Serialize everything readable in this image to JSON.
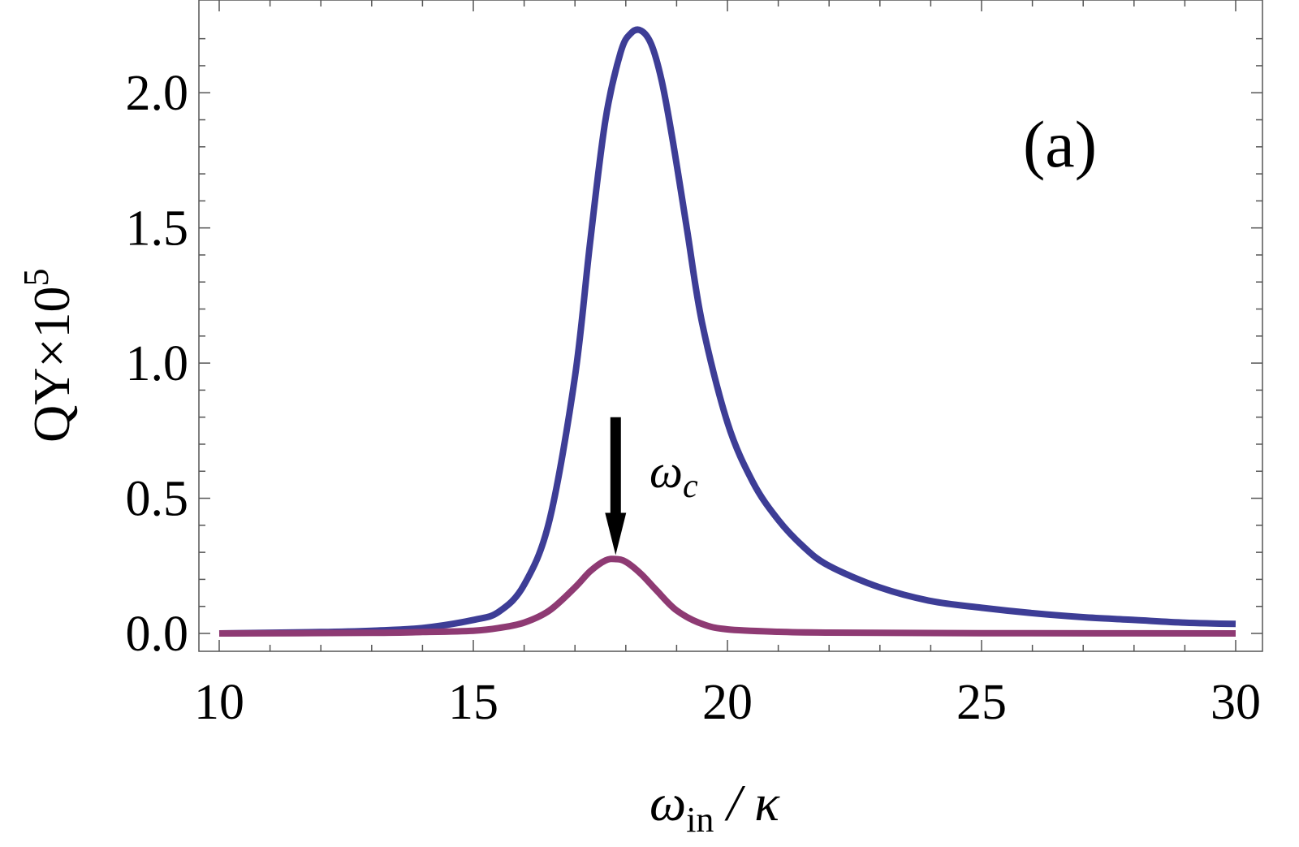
{
  "chart_data": {
    "type": "line",
    "panel_label": "(a)",
    "xlabel": {
      "main": "ω",
      "sub": "in",
      "rest": " / κ"
    },
    "ylabel": {
      "main": "QY×10",
      "sup": "5"
    },
    "xlim": [
      10,
      30
    ],
    "ylim": [
      0,
      2.25
    ],
    "xticks": [
      {
        "value": 10,
        "label": "10"
      },
      {
        "value": 15,
        "label": "15"
      },
      {
        "value": 20,
        "label": "20"
      },
      {
        "value": 25,
        "label": "25"
      },
      {
        "value": 30,
        "label": "30"
      }
    ],
    "yticks": [
      {
        "value": 0.0,
        "label": "0.0"
      },
      {
        "value": 0.5,
        "label": "0.5"
      },
      {
        "value": 1.0,
        "label": "1.0"
      },
      {
        "value": 1.5,
        "label": "1.5"
      },
      {
        "value": 2.0,
        "label": "2.0"
      }
    ],
    "grid": false,
    "series": [
      {
        "color": "#3d3d96",
        "x": [
          10,
          12,
          13,
          14,
          15,
          15.5,
          16,
          16.5,
          17,
          17.3,
          17.6,
          17.9,
          18.1,
          18.3,
          18.5,
          18.7,
          18.9,
          19.2,
          19.5,
          20,
          20.5,
          21,
          21.5,
          22,
          23,
          24,
          25,
          26,
          27,
          28,
          29,
          30
        ],
        "y": [
          0.0,
          0.005,
          0.01,
          0.02,
          0.05,
          0.08,
          0.18,
          0.42,
          0.95,
          1.45,
          1.9,
          2.15,
          2.22,
          2.23,
          2.18,
          2.05,
          1.85,
          1.5,
          1.15,
          0.78,
          0.56,
          0.42,
          0.32,
          0.25,
          0.17,
          0.12,
          0.095,
          0.075,
          0.06,
          0.05,
          0.04,
          0.035
        ]
      },
      {
        "color": "#8e3a73",
        "x": [
          10,
          13,
          14,
          15,
          15.5,
          16,
          16.5,
          17,
          17.3,
          17.6,
          17.8,
          18,
          18.3,
          18.6,
          19,
          19.5,
          20,
          21,
          22,
          25,
          30
        ],
        "y": [
          0.0,
          0.002,
          0.005,
          0.01,
          0.02,
          0.04,
          0.085,
          0.17,
          0.23,
          0.27,
          0.275,
          0.265,
          0.22,
          0.16,
          0.085,
          0.035,
          0.015,
          0.006,
          0.003,
          0.001,
          0.0
        ]
      }
    ],
    "annotation": {
      "text_main": "ω",
      "text_sub": "c",
      "arrow_x": 17.8,
      "arrow_from_y": 0.8,
      "arrow_to_y": 0.29
    }
  }
}
